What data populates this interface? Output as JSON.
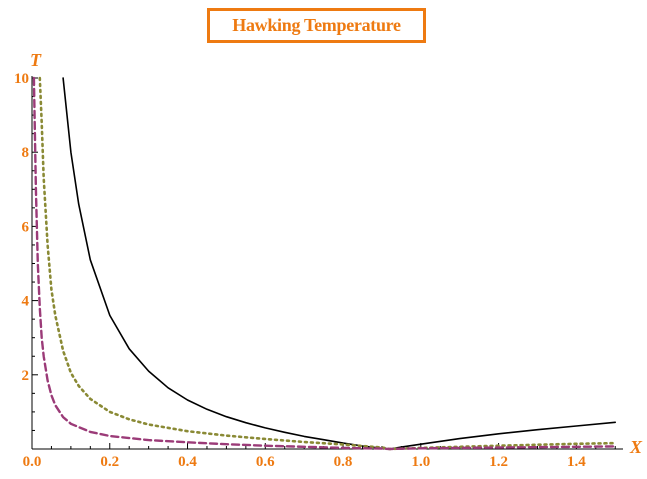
{
  "chart_data": {
    "type": "line",
    "title": "Hawking Temperature",
    "xlabel": "X",
    "ylabel": "T",
    "xlim": [
      0,
      1.52
    ],
    "ylim": [
      0,
      10
    ],
    "grid": false,
    "x_ticks": [
      "0.0",
      "0.2",
      "0.4",
      "0.6",
      "0.8",
      "1.0",
      "1.2",
      "1.4"
    ],
    "y_ticks": [
      "2",
      "4",
      "6",
      "8",
      "10"
    ],
    "series": [
      {
        "style": "solid",
        "color": "#000000",
        "x": [
          0.08,
          0.1,
          0.12,
          0.15,
          0.2,
          0.25,
          0.3,
          0.35,
          0.4,
          0.45,
          0.5,
          0.55,
          0.6,
          0.65,
          0.7,
          0.75,
          0.8,
          0.85,
          0.9,
          0.92,
          0.95,
          1.0,
          1.1,
          1.2,
          1.3,
          1.4,
          1.5
        ],
        "y": [
          10.0,
          8.0,
          6.6,
          5.1,
          3.6,
          2.7,
          2.1,
          1.65,
          1.32,
          1.07,
          0.87,
          0.71,
          0.57,
          0.45,
          0.34,
          0.25,
          0.16,
          0.08,
          0.02,
          0.0,
          0.05,
          0.13,
          0.28,
          0.41,
          0.52,
          0.62,
          0.72
        ]
      },
      {
        "style": "dotted",
        "color": "#8a8a35",
        "x": [
          0.02,
          0.025,
          0.03,
          0.04,
          0.05,
          0.06,
          0.08,
          0.1,
          0.12,
          0.15,
          0.2,
          0.25,
          0.3,
          0.4,
          0.5,
          0.6,
          0.7,
          0.8,
          0.9,
          0.92,
          1.0,
          1.2,
          1.4,
          1.5
        ],
        "y": [
          10.0,
          8.8,
          7.3,
          5.5,
          4.3,
          3.6,
          2.65,
          2.05,
          1.7,
          1.35,
          1.0,
          0.8,
          0.66,
          0.48,
          0.36,
          0.27,
          0.19,
          0.12,
          0.04,
          0.0,
          0.03,
          0.09,
          0.14,
          0.16
        ]
      },
      {
        "style": "dashed",
        "color": "#9b3b78",
        "x": [
          0.005,
          0.01,
          0.015,
          0.02,
          0.025,
          0.03,
          0.04,
          0.05,
          0.06,
          0.08,
          0.1,
          0.15,
          0.2,
          0.3,
          0.4,
          0.5,
          0.6,
          0.7,
          0.8,
          0.9,
          0.92,
          1.0,
          1.2,
          1.4,
          1.5
        ],
        "y": [
          10.0,
          7.0,
          5.0,
          3.8,
          3.0,
          2.5,
          1.85,
          1.45,
          1.18,
          0.86,
          0.68,
          0.46,
          0.35,
          0.24,
          0.18,
          0.13,
          0.09,
          0.06,
          0.03,
          0.01,
          0.0,
          0.02,
          0.04,
          0.06,
          0.07
        ]
      }
    ]
  }
}
